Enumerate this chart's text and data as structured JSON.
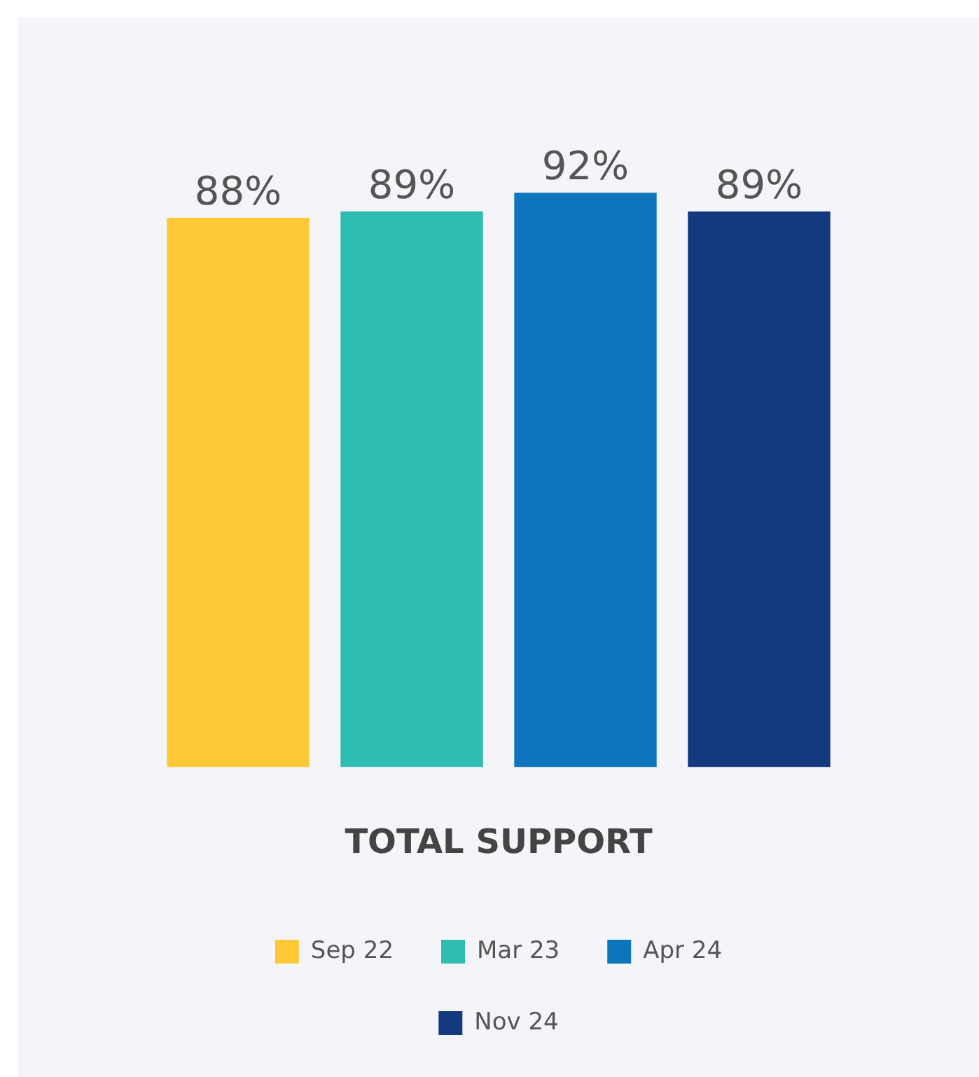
{
  "chart_data": {
    "type": "bar",
    "xlabel": "TOTAL SUPPORT",
    "categories": [
      null,
      null,
      null,
      null
    ],
    "stacked": true,
    "series": [
      {
        "name": "Sep 22",
        "color": "#ffc836",
        "values": [
          88,
          null,
          null,
          null
        ],
        "value_labels": [
          "88%",
          null,
          null,
          null
        ]
      },
      {
        "name": "Mar 23",
        "color": "#2fbcb3",
        "values": [
          null,
          89,
          null,
          null
        ],
        "value_labels": [
          null,
          "89%",
          null,
          null
        ]
      },
      {
        "name": "Apr 24",
        "color": "#0c75bb",
        "values": [
          null,
          null,
          92,
          null
        ],
        "value_labels": [
          null,
          null,
          "92%",
          null
        ]
      },
      {
        "name": "Nov 24",
        "color": "#14397f",
        "values": [
          null,
          null,
          null,
          89
        ],
        "value_labels": [
          null,
          null,
          null,
          "89%"
        ]
      }
    ],
    "legend": "bottom"
  }
}
